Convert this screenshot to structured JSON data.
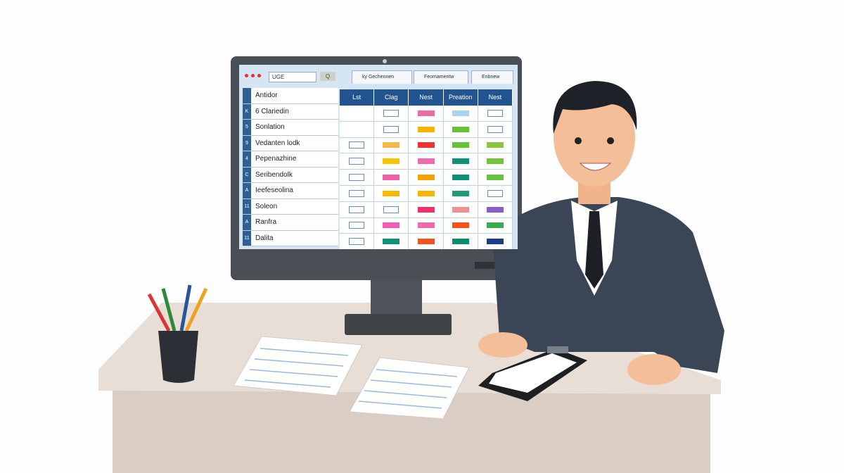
{
  "browser": {
    "address": "UGE",
    "go_label": "Q",
    "tabs": [
      "ky Gechennen",
      "Feomamentw",
      "Enbnew"
    ]
  },
  "list": {
    "header": "Antidor",
    "rows": [
      {
        "num": "K",
        "label": "6 Clariedin"
      },
      {
        "num": "5",
        "label": "Sonlation"
      },
      {
        "num": "9",
        "label": "Vedanten lodk"
      },
      {
        "num": "4",
        "label": "Pepenazhine"
      },
      {
        "num": "C",
        "label": "Seribendolk"
      },
      {
        "num": "A",
        "label": "Ieefeseolina"
      },
      {
        "num": "11",
        "label": "Soleon"
      },
      {
        "num": "A",
        "label": "Ranfra"
      },
      {
        "num": "11",
        "label": "Dalita"
      }
    ]
  },
  "grid": {
    "headers": [
      "Lst",
      "Clag",
      "Nest",
      "Preation",
      "Nest"
    ],
    "rows": [
      [
        "none",
        "empty",
        "#f06aa0",
        "#a9d3ee",
        "empty"
      ],
      [
        "none",
        "empty",
        "#f7b500",
        "#66c23a",
        "empty"
      ],
      [
        "empty",
        "#f6b84a",
        "#ee3333",
        "#66c23a",
        "#8cc63f"
      ],
      [
        "empty",
        "#f7c400",
        "#f06ab0",
        "#0e9277",
        "#74c33a"
      ],
      [
        "empty",
        "#ee5fa8",
        "#f5a300",
        "#0e9277",
        "#66c23a"
      ],
      [
        "empty",
        "#f7b900",
        "#f7b500",
        "#1f9b7a",
        "empty"
      ],
      [
        "empty",
        "empty",
        "#ee3366",
        "#f0908c",
        "#8e5bc6"
      ],
      [
        "empty",
        "#ee5fb8",
        "#f06ab0",
        "#f5521f",
        "#3aaa4a"
      ],
      [
        "empty",
        "#0e9277",
        "#f5521f",
        "#0e8a6d",
        "#1a3e8a"
      ]
    ]
  },
  "colors": {
    "suit": "#3a4556",
    "bezel": "#4a4f56",
    "desk": "#e8ded6",
    "accent": "#22558f"
  }
}
